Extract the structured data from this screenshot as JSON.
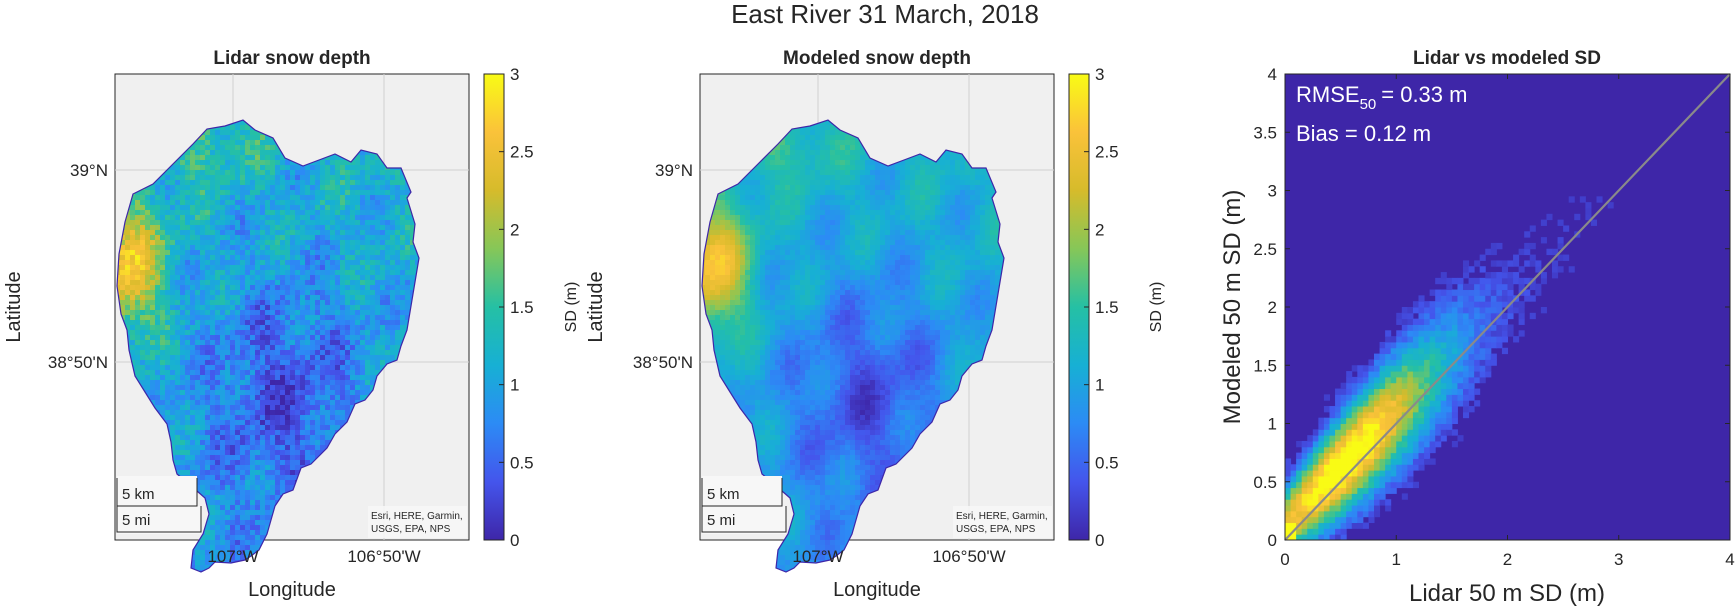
{
  "figure_title": "East River 31 March, 2018",
  "colormap": [
    "#3e26a8",
    "#4455ec",
    "#2c8bf5",
    "#17b0d4",
    "#25c0a4",
    "#86c758",
    "#d6bb2b",
    "#fac23a",
    "#f9fb15"
  ],
  "map_background": "#f0f0f0",
  "chart_data": [
    {
      "type": "map",
      "title": "Lidar snow depth",
      "xlabel": "Longitude",
      "ylabel": "Latitude",
      "x_ticks": [
        "107°W",
        "106°50'W"
      ],
      "y_ticks": [
        "39°N",
        "38°50'N"
      ],
      "scalebar": [
        "5 km",
        "5 mi"
      ],
      "attribution": [
        "Esri, HERE, Garmin,",
        "USGS, EPA, NPS"
      ],
      "colorbar": {
        "label": "SD (m)",
        "range": [
          0,
          3
        ],
        "ticks": [
          "0",
          "0.5",
          "1",
          "1.5",
          "2",
          "2.5",
          "3"
        ]
      }
    },
    {
      "type": "map",
      "title": "Modeled snow depth",
      "xlabel": "Longitude",
      "ylabel": "Latitude",
      "x_ticks": [
        "107°W",
        "106°50'W"
      ],
      "y_ticks": [
        "39°N",
        "38°50'N"
      ],
      "scalebar": [
        "5 km",
        "5 mi"
      ],
      "attribution": [
        "Esri, HERE, Garmin,",
        "USGS, EPA, NPS"
      ],
      "colorbar": {
        "label": "SD (m)",
        "range": [
          0,
          3
        ],
        "ticks": [
          "0",
          "0.5",
          "1",
          "1.5",
          "2",
          "2.5",
          "3"
        ]
      }
    },
    {
      "type": "heatmap",
      "title": "Lidar vs modeled SD",
      "xlabel": "Lidar 50 m SD (m)",
      "ylabel": "Modeled 50 m SD (m)",
      "xlim": [
        0,
        4
      ],
      "ylim": [
        0,
        4
      ],
      "x_ticks": [
        "0",
        "1",
        "2",
        "3",
        "4"
      ],
      "y_ticks": [
        "0",
        "0.5",
        "1",
        "1.5",
        "2",
        "2.5",
        "3",
        "3.5",
        "4"
      ],
      "reference_line": {
        "x": [
          0,
          4
        ],
        "y": [
          0,
          4
        ],
        "color": "#8a8a8a"
      },
      "stats": {
        "rmse_label": "RMSE",
        "rmse_sub": "50",
        "rmse_value": "= 0.33 m",
        "bias": "Bias = 0.12 m"
      }
    }
  ]
}
